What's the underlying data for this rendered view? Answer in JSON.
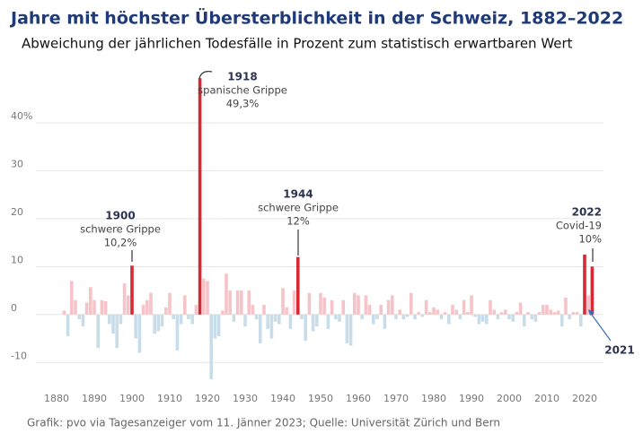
{
  "chart_data": {
    "type": "bar",
    "title": "Jahre mit höchster Übersterblichkeit in der Schweiz, 1882–2022",
    "subtitle": "Abweichung der jährlichen Todesfälle in Prozent zum statistisch erwartbaren Wert",
    "source": "Grafik: pvo  via Tagesanzeiger vom 11. Jänner 2023; Quelle: Universität Zürich und Bern",
    "x": [
      1882,
      1883,
      1884,
      1885,
      1886,
      1887,
      1888,
      1889,
      1890,
      1891,
      1892,
      1893,
      1894,
      1895,
      1896,
      1897,
      1898,
      1899,
      1900,
      1901,
      1902,
      1903,
      1904,
      1905,
      1906,
      1907,
      1908,
      1909,
      1910,
      1911,
      1912,
      1913,
      1914,
      1915,
      1916,
      1917,
      1918,
      1919,
      1920,
      1921,
      1922,
      1923,
      1924,
      1925,
      1926,
      1927,
      1928,
      1929,
      1930,
      1931,
      1932,
      1933,
      1934,
      1935,
      1936,
      1937,
      1938,
      1939,
      1940,
      1941,
      1942,
      1943,
      1944,
      1945,
      1946,
      1947,
      1948,
      1949,
      1950,
      1951,
      1952,
      1953,
      1954,
      1955,
      1956,
      1957,
      1958,
      1959,
      1960,
      1961,
      1962,
      1963,
      1964,
      1965,
      1966,
      1967,
      1968,
      1969,
      1970,
      1971,
      1972,
      1973,
      1974,
      1975,
      1976,
      1977,
      1978,
      1979,
      1980,
      1981,
      1982,
      1983,
      1984,
      1985,
      1986,
      1987,
      1988,
      1989,
      1990,
      1991,
      1992,
      1993,
      1994,
      1995,
      1996,
      1997,
      1998,
      1999,
      2000,
      2001,
      2002,
      2003,
      2004,
      2005,
      2006,
      2007,
      2008,
      2009,
      2010,
      2011,
      2012,
      2013,
      2014,
      2015,
      2016,
      2017,
      2018,
      2019,
      2020,
      2021,
      2022
    ],
    "values": [
      0.8,
      -4.5,
      7,
      3,
      -1,
      -2.5,
      2.5,
      5.7,
      3,
      -7,
      3,
      2.8,
      -2,
      -4,
      -7,
      -2,
      6.5,
      4,
      10.2,
      -5,
      -8,
      2,
      3,
      4.5,
      -4,
      -3.5,
      -2.5,
      1.5,
      4.5,
      -1,
      -7.5,
      -2,
      4,
      -1,
      -2,
      2,
      49.3,
      7.5,
      7,
      -13.5,
      -5,
      -4.5,
      0.8,
      8.5,
      5,
      -1.5,
      5,
      5,
      -2.5,
      5,
      2,
      -1,
      -6,
      2,
      -3,
      -5,
      -1.5,
      -2,
      5.5,
      1.5,
      -3,
      5,
      12,
      -1,
      -5.5,
      4.5,
      -3.5,
      -2.5,
      4.5,
      3.5,
      -3,
      3,
      -1,
      -1.5,
      3,
      -6,
      -6.5,
      4.5,
      4,
      -1,
      4,
      2,
      -2,
      -1,
      2,
      -3,
      3,
      4,
      -1,
      1,
      -1,
      -0.5,
      4.5,
      -1,
      0.5,
      -0.5,
      3,
      0.5,
      1.5,
      1,
      -1,
      0.5,
      -2,
      2,
      1,
      -1,
      3,
      0.5,
      4,
      -0.5,
      -2,
      -1.5,
      -2,
      3,
      1,
      -1,
      0.5,
      1,
      -1,
      -1.5,
      0.5,
      2.5,
      -2.5,
      0.5,
      -1,
      -1.5,
      0.5,
      2,
      2,
      1,
      0.5,
      0.8,
      -2.5,
      3.5,
      -1,
      0.5,
      0.5,
      -2.5,
      12.5,
      4,
      10
    ],
    "positive_color": "#f5c3c8",
    "negative_color": "#c8dcea",
    "highlight_color": "#d42a36",
    "highlight_years": [
      1900,
      1918,
      1944,
      2020,
      2022
    ],
    "xlim": [
      1875,
      2025
    ],
    "xticks": [
      1880,
      1890,
      1900,
      1910,
      1920,
      1930,
      1940,
      1950,
      1960,
      1970,
      1980,
      1990,
      2000,
      2010,
      2020
    ],
    "ylim": [
      -15,
      50
    ],
    "yticks": [
      -10,
      0,
      10,
      20,
      30,
      {
        "value": 40,
        "label": "40%"
      }
    ],
    "grid": true,
    "annotations": [
      {
        "year": "1900",
        "text": [
          "schwere Grippe",
          "10,2%"
        ]
      },
      {
        "year": "1918",
        "text": [
          "spanische Grippe",
          "49,3%"
        ]
      },
      {
        "year": "1944",
        "text": [
          "schwere Grippe",
          "12%"
        ]
      },
      {
        "year": "2022",
        "text": [
          "Covid-19",
          "10%"
        ]
      },
      {
        "year": "2021"
      }
    ]
  }
}
